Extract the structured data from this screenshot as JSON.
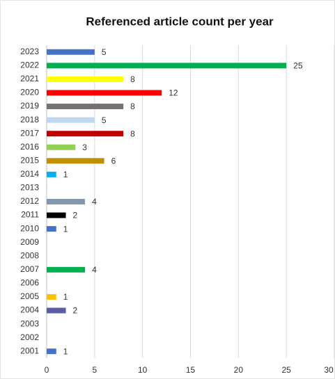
{
  "chart_data": {
    "type": "hbar",
    "title": "Referenced article count per year",
    "categories": [
      "2023",
      "2022",
      "2021",
      "2020",
      "2019",
      "2018",
      "2017",
      "2016",
      "2015",
      "2014",
      "2013",
      "2012",
      "2011",
      "2010",
      "2009",
      "2008",
      "2007",
      "2006",
      "2005",
      "2004",
      "2003",
      "2002",
      "2001"
    ],
    "values": [
      5,
      25,
      8,
      12,
      8,
      5,
      8,
      3,
      6,
      1,
      null,
      4,
      2,
      1,
      null,
      null,
      4,
      null,
      1,
      2,
      null,
      null,
      1
    ],
    "colors": [
      "#4472c4",
      "#00b050",
      "#ffff00",
      "#ff0000",
      "#767171",
      "#bdd7ee",
      "#c00000",
      "#92d050",
      "#bf9000",
      "#00b0f0",
      null,
      "#8497b0",
      "#000000",
      "#4472c4",
      null,
      null,
      "#00b050",
      null,
      "#ffc000",
      "#5b5ea6",
      null,
      null,
      "#4472c4"
    ],
    "xlim": [
      0,
      30
    ],
    "xticks": [
      0,
      5,
      10,
      15,
      20,
      25,
      30
    ],
    "grid": true,
    "data_labels": true
  }
}
